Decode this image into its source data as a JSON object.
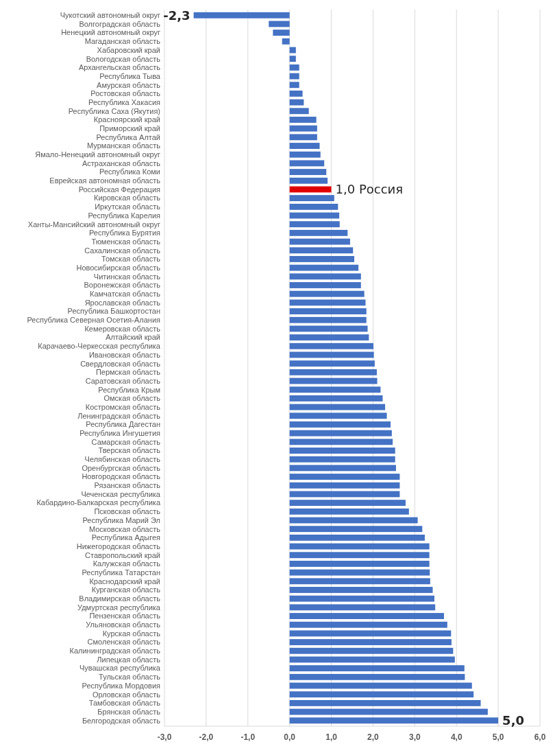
{
  "chart_data": {
    "type": "bar",
    "orientation": "horizontal",
    "categories": [
      "Чукотский автономный округ",
      "Волгоградская область",
      "Ненецкий автономный округ",
      "Магаданская область",
      "Хабаровский край",
      "Вологодская область",
      "Архангельская область",
      "Республика Тыва",
      "Амурская область",
      "Ростовская область",
      "Республика Хакасия",
      "Республика Саха (Якутия)",
      "Красноярский край",
      "Приморский край",
      "Республика Алтай",
      "Мурманская область",
      "Ямало-Ненецкий автономный округ",
      "Астраханская область",
      "Республика Коми",
      "Еврейская автономная область",
      "Российская Федерация",
      "Кировская область",
      "Иркутская область",
      "Республика Карелия",
      "Ханты-Мансийский автономный округ",
      "Республика Бурятия",
      "Тюменская область",
      "Сахалинская область",
      "Томская область",
      "Новосибирская область",
      "Читинская область",
      "Воронежская область",
      "Камчатская область",
      "Ярославская область",
      "Республика Башкортостан",
      "Республика Северная Осетия-Алания",
      "Кемеровская область",
      "Алтайский край",
      "Карачаево-Черкесская республика",
      "Ивановская область",
      "Свердловская область",
      "Пермская область",
      "Саратовская область",
      "Республика Крым",
      "Омская область",
      "Костромская область",
      "Ленинградская область",
      "Республика Дагестан",
      "Республика Ингушетия",
      "Самарская область",
      "Тверская область",
      "Челябинская область",
      "Оренбургская область",
      "Новгородская область",
      "Рязанская область",
      "Чеченская республика",
      "Кабардино-Балкарская республика",
      "Псковская область",
      "Республика Марий Эл",
      "Московская область",
      "Республика Адыгея",
      "Нижегородская область",
      "Ставропольский край",
      "Калужская область",
      "Республика Татарстан",
      "Краснодарский край",
      "Курганская область",
      "Владимирская область",
      "Удмуртская республика",
      "Пензенская область",
      "Ульяновская область",
      "Курская область",
      "Смоленская область",
      "Калининградская область",
      "Липецкая область",
      "Чувашская республика",
      "Тульская область",
      "Республика Мордовия",
      "Орловская область",
      "Тамбовская область",
      "Брянская область",
      "Белгородская область"
    ],
    "values": [
      -2.3,
      -0.5,
      -0.4,
      -0.18,
      0.15,
      0.15,
      0.23,
      0.23,
      0.23,
      0.31,
      0.34,
      0.46,
      0.64,
      0.66,
      0.66,
      0.72,
      0.74,
      0.83,
      0.88,
      0.91,
      1.0,
      1.07,
      1.16,
      1.19,
      1.2,
      1.39,
      1.45,
      1.52,
      1.55,
      1.65,
      1.71,
      1.71,
      1.79,
      1.82,
      1.84,
      1.84,
      1.87,
      1.9,
      2.01,
      2.02,
      2.04,
      2.09,
      2.1,
      2.18,
      2.23,
      2.29,
      2.33,
      2.42,
      2.45,
      2.47,
      2.53,
      2.53,
      2.55,
      2.64,
      2.64,
      2.64,
      2.78,
      2.86,
      3.07,
      3.18,
      3.24,
      3.35,
      3.35,
      3.35,
      3.36,
      3.37,
      3.43,
      3.47,
      3.49,
      3.7,
      3.78,
      3.87,
      3.88,
      3.92,
      3.96,
      4.19,
      4.2,
      4.37,
      4.41,
      4.58,
      4.75,
      5.0
    ],
    "colors": [
      "#4472c4",
      "#4472c4",
      "#4472c4",
      "#4472c4",
      "#4472c4",
      "#4472c4",
      "#4472c4",
      "#4472c4",
      "#4472c4",
      "#4472c4",
      "#4472c4",
      "#4472c4",
      "#4472c4",
      "#4472c4",
      "#4472c4",
      "#4472c4",
      "#4472c4",
      "#4472c4",
      "#4472c4",
      "#4472c4",
      "#e00000",
      "#4472c4",
      "#4472c4",
      "#4472c4",
      "#4472c4",
      "#4472c4",
      "#4472c4",
      "#4472c4",
      "#4472c4",
      "#4472c4",
      "#4472c4",
      "#4472c4",
      "#4472c4",
      "#4472c4",
      "#4472c4",
      "#4472c4",
      "#4472c4",
      "#4472c4",
      "#4472c4",
      "#4472c4",
      "#4472c4",
      "#4472c4",
      "#4472c4",
      "#4472c4",
      "#4472c4",
      "#4472c4",
      "#4472c4",
      "#4472c4",
      "#4472c4",
      "#4472c4",
      "#4472c4",
      "#4472c4",
      "#4472c4",
      "#4472c4",
      "#4472c4",
      "#4472c4",
      "#4472c4",
      "#4472c4",
      "#4472c4",
      "#4472c4",
      "#4472c4",
      "#4472c4",
      "#4472c4",
      "#4472c4",
      "#4472c4",
      "#4472c4",
      "#4472c4",
      "#4472c4",
      "#4472c4",
      "#4472c4",
      "#4472c4",
      "#4472c4",
      "#4472c4",
      "#4472c4",
      "#4472c4",
      "#4472c4",
      "#4472c4",
      "#4472c4",
      "#4472c4",
      "#4472c4",
      "#4472c4",
      "#4472c4"
    ],
    "value_labels": [
      "-2,3",
      null,
      null,
      null,
      null,
      null,
      null,
      null,
      null,
      null,
      null,
      null,
      null,
      null,
      null,
      null,
      null,
      null,
      null,
      null,
      "1,0 Россия",
      null,
      null,
      null,
      null,
      null,
      null,
      null,
      null,
      null,
      null,
      null,
      null,
      null,
      null,
      null,
      null,
      null,
      null,
      null,
      null,
      null,
      null,
      null,
      null,
      null,
      null,
      null,
      null,
      null,
      null,
      null,
      null,
      null,
      null,
      null,
      null,
      null,
      null,
      null,
      null,
      null,
      null,
      null,
      null,
      null,
      null,
      null,
      null,
      null,
      null,
      null,
      null,
      null,
      null,
      null,
      null,
      null,
      null,
      null,
      null,
      "5,0"
    ],
    "xlim": [
      -3,
      6
    ],
    "xticks": [
      {
        "value": -3,
        "label": "-3,0"
      },
      {
        "value": -2,
        "label": "-2,0"
      },
      {
        "value": -1,
        "label": "-1,0"
      },
      {
        "value": 0,
        "label": "0,0"
      },
      {
        "value": 1,
        "label": "1,0"
      },
      {
        "value": 2,
        "label": "2,0"
      },
      {
        "value": 3,
        "label": "3,0"
      },
      {
        "value": 4,
        "label": "4,0"
      },
      {
        "value": 5,
        "label": "5,0"
      },
      {
        "value": 6,
        "label": "6,0"
      }
    ],
    "grid": "x"
  }
}
